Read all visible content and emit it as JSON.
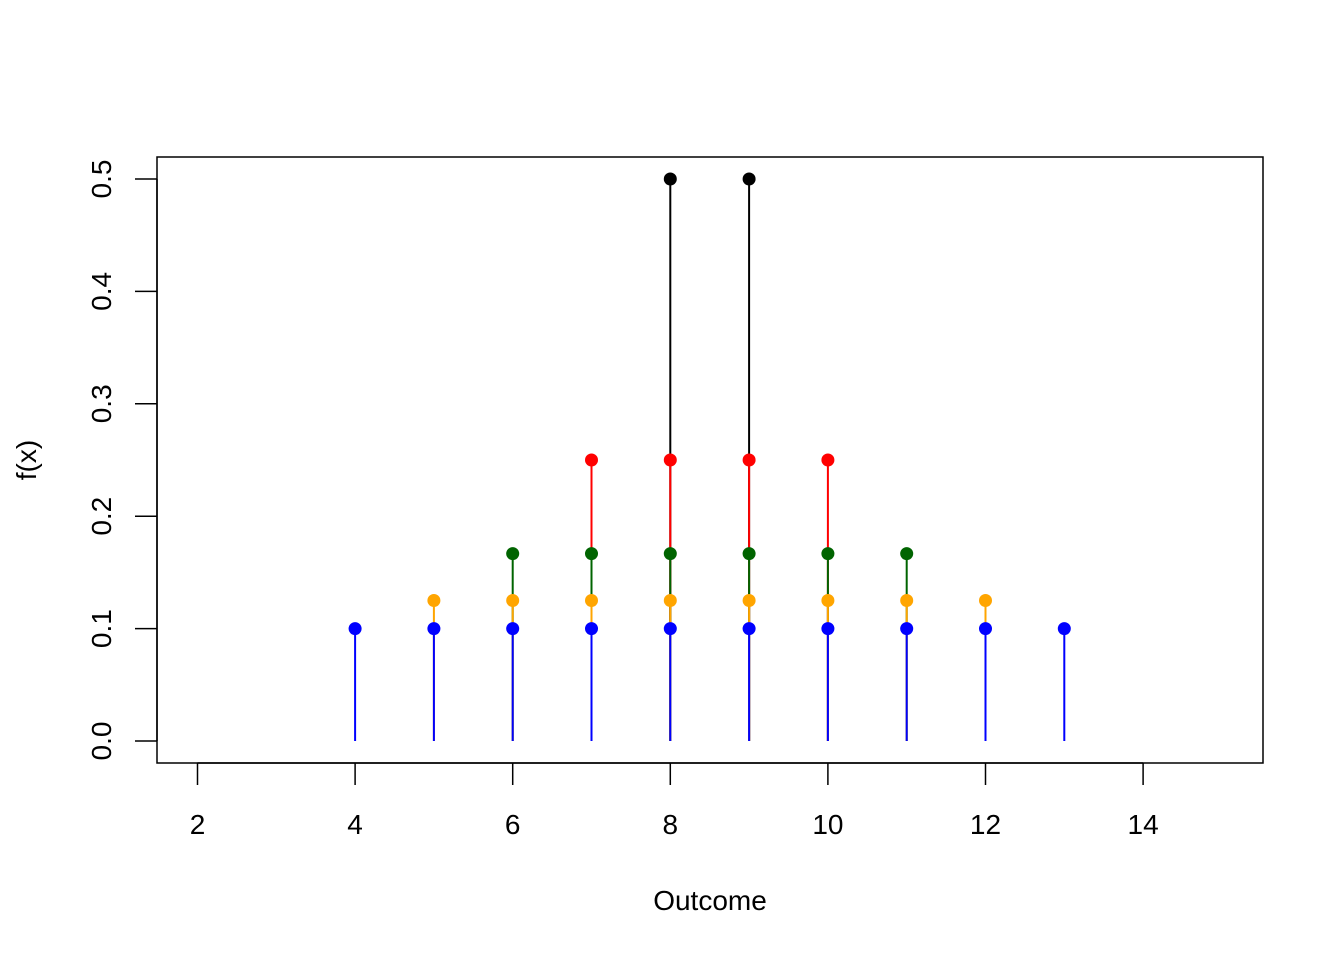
{
  "chart_data": {
    "type": "scatter",
    "style": "stem (needle) plot with point markers",
    "title": "",
    "xlabel": "Outcome",
    "ylabel": "f(x)",
    "xlim": [
      2,
      15
    ],
    "ylim": [
      0,
      0.5
    ],
    "x_ticks": [
      2,
      4,
      6,
      8,
      10,
      12,
      14
    ],
    "y_ticks": [
      0.0,
      0.1,
      0.2,
      0.3,
      0.4,
      0.5
    ],
    "y_tick_labels": [
      "0.0",
      "0.1",
      "0.2",
      "0.3",
      "0.4",
      "0.5"
    ],
    "grid": false,
    "legend": "none",
    "series": [
      {
        "color": "#000000",
        "x": [
          8,
          9
        ],
        "values": [
          0.5,
          0.5
        ]
      },
      {
        "color": "#ff0000",
        "x": [
          7,
          8,
          9,
          10
        ],
        "values": [
          0.25,
          0.25,
          0.25,
          0.25
        ]
      },
      {
        "color": "#006400",
        "x": [
          6,
          7,
          8,
          9,
          10,
          11
        ],
        "values": [
          0.1667,
          0.1667,
          0.1667,
          0.1667,
          0.1667,
          0.1667
        ]
      },
      {
        "color": "#ffa500",
        "x": [
          5,
          6,
          7,
          8,
          9,
          10,
          11,
          12
        ],
        "values": [
          0.125,
          0.125,
          0.125,
          0.125,
          0.125,
          0.125,
          0.125,
          0.125
        ]
      },
      {
        "color": "#0000ff",
        "x": [
          4,
          5,
          6,
          7,
          8,
          9,
          10,
          11,
          12,
          13
        ],
        "values": [
          0.1,
          0.1,
          0.1,
          0.1,
          0.1,
          0.1,
          0.1,
          0.1,
          0.1,
          0.1
        ]
      }
    ]
  }
}
